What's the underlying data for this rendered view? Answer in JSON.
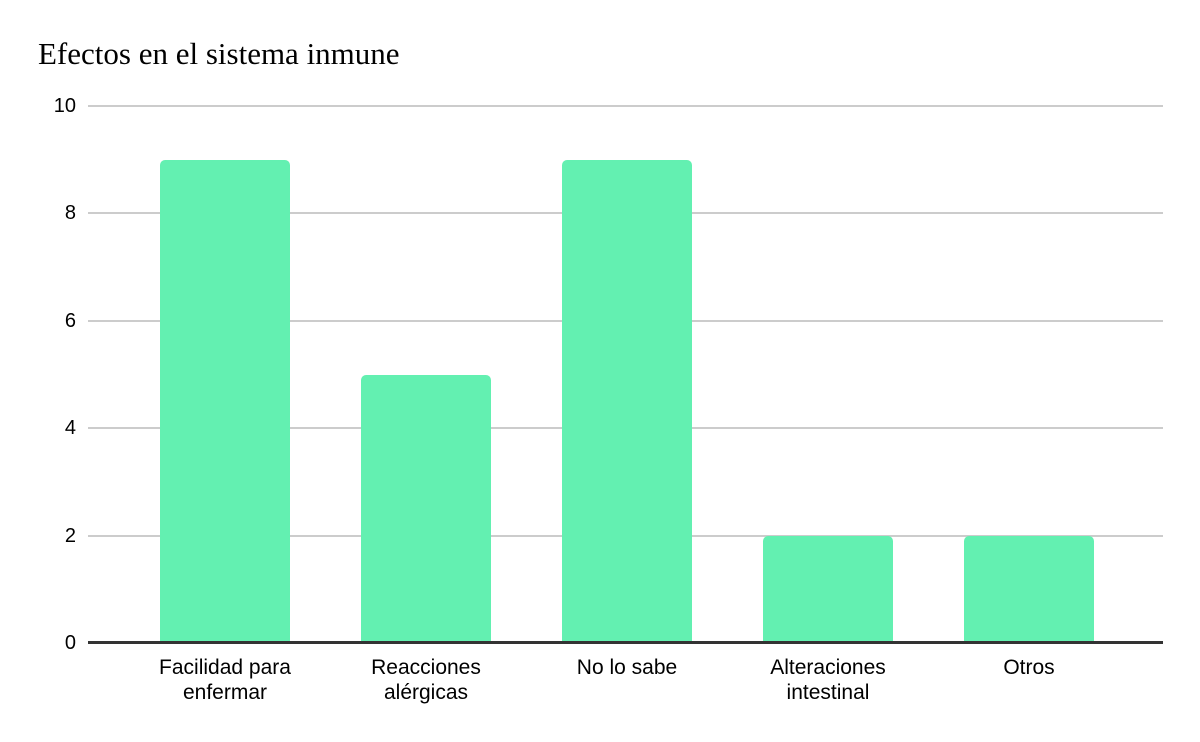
{
  "chart_data": {
    "type": "bar",
    "title": "Efectos en el sistema inmune",
    "categories": [
      "Facilidad para enfermar",
      "Reacciones alérgicas",
      "No lo sabe",
      "Alteraciones intestinal",
      "Otros"
    ],
    "values": [
      9,
      5,
      9,
      2,
      2
    ],
    "xlabel": "",
    "ylabel": "",
    "ylim": [
      0,
      10
    ],
    "yticks": [
      10,
      8,
      6,
      4,
      2,
      0
    ],
    "grid": true,
    "legend": false,
    "legend_position": "none",
    "bar_color": "#63F0B1",
    "gridline_color": "#CCCCCC",
    "axis_line_color": "#333333",
    "text_color": "#000000",
    "background_color": "#FFFFFF"
  }
}
